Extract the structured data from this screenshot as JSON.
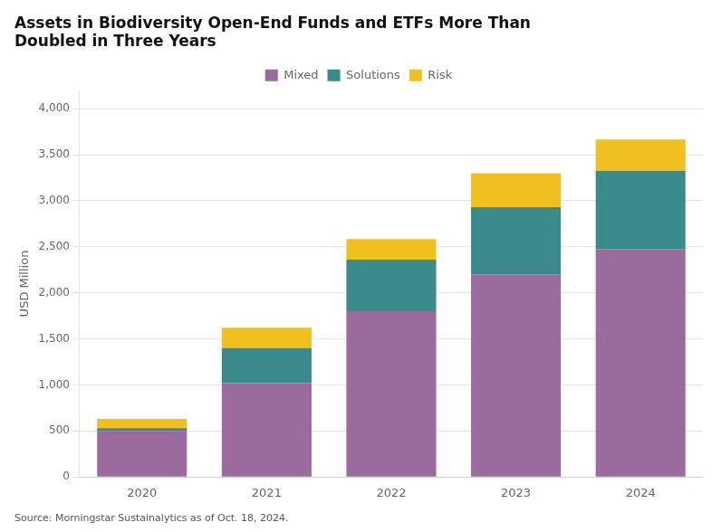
{
  "chart_data": {
    "type": "bar",
    "title": [
      "Assets in Biodiversity Open-End Funds and ETFs More Than",
      "Doubled in Three Years"
    ],
    "annotations": [
      "Source: Morningstar Sustainalytics as of Oct. 18, 2024."
    ],
    "categories": [
      "2020",
      "2021",
      "2022",
      "2023",
      "2024"
    ],
    "series": [
      {
        "name": "Mixed",
        "color": "#9b6b9e",
        "values": [
          500,
          1020,
          1800,
          2200,
          2475
        ]
      },
      {
        "name": "Solutions",
        "color": "#3a8a8a",
        "values": [
          30,
          380,
          560,
          730,
          850
        ]
      },
      {
        "name": "Risk",
        "color": "#f0c020",
        "values": [
          100,
          220,
          225,
          370,
          340
        ]
      }
    ],
    "ylabel": "USD Million",
    "ylim": [
      0,
      4200
    ],
    "yticks": [
      0,
      500,
      {
        "value": 1000,
        "label": "1,000"
      },
      {
        "value": 1500,
        "label": "1,500"
      },
      {
        "value": 2000,
        "label": "2,000"
      },
      {
        "value": 2500,
        "label": "2,500"
      },
      {
        "value": 3000,
        "label": "3,000"
      },
      {
        "value": 3500,
        "label": "3,500"
      },
      {
        "value": 4000,
        "label": "4,000"
      }
    ],
    "stacked": true,
    "grid": true,
    "legend": "top"
  }
}
